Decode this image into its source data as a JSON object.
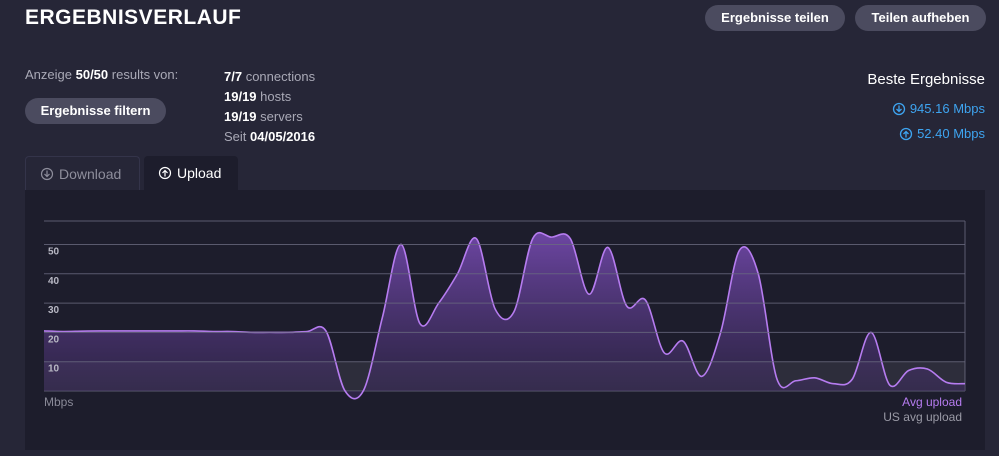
{
  "header": {
    "title": "ERGEBNISVERLAUF",
    "buttons": [
      "Ergebnisse teilen",
      "Teilen aufheben"
    ]
  },
  "summary": {
    "display": [
      "Anzeige",
      "50/50",
      "results von:"
    ],
    "filter_button": "Ergebnisse filtern",
    "stats": [
      [
        "7/7",
        "connections"
      ],
      [
        "19/19",
        "hosts"
      ],
      [
        "19/19",
        "servers"
      ],
      [
        "Seit",
        "04/05/2016"
      ]
    ]
  },
  "best": {
    "title": "Beste Ergebnisse",
    "download": "945.16 Mbps",
    "upload": "52.40 Mbps"
  },
  "tabs": [
    "Download",
    "Upload"
  ],
  "chart_data": {
    "type": "area",
    "y_label": "Mbps",
    "categories": [
      null,
      null,
      null,
      null,
      null,
      null,
      null,
      null,
      null,
      null,
      null,
      null,
      null,
      null,
      null,
      null,
      null,
      null,
      null,
      null,
      null,
      null,
      null,
      null,
      null,
      null,
      null,
      null,
      null,
      null,
      null,
      null,
      null,
      null,
      null,
      null,
      null,
      null,
      null,
      null,
      null,
      null,
      null,
      null,
      null,
      null,
      null,
      null,
      null,
      null
    ],
    "series": [
      {
        "name": "Avg upload",
        "color": "#b67cf0",
        "values": [
          20.5,
          20.3,
          20.4,
          20.5,
          20.5,
          20.5,
          20.5,
          20.5,
          20.5,
          20.3,
          20.3,
          20,
          20,
          20,
          20.3,
          20.5,
          0.2,
          0.2,
          25,
          50,
          23,
          30,
          40,
          52,
          28,
          27,
          52,
          52.5,
          52,
          33,
          49,
          29,
          31,
          13,
          17,
          5,
          20,
          48,
          40,
          4,
          3.5,
          4.5,
          2.5,
          4,
          20,
          2,
          7,
          7.5,
          3,
          2.5
        ]
      },
      {
        "name": "US avg upload",
        "color": "#9a9aa6",
        "values": [
          10,
          10,
          10,
          10,
          10,
          10,
          10,
          10,
          10,
          10,
          10,
          10,
          10,
          10,
          10,
          10,
          10,
          10,
          10,
          10,
          10,
          10,
          10,
          10,
          10,
          10,
          10,
          10,
          10,
          10,
          10,
          10,
          10,
          10,
          10,
          10,
          10,
          10,
          10,
          10,
          10,
          10,
          10,
          10,
          10,
          10,
          10,
          10,
          10,
          10
        ]
      }
    ],
    "ylim": [
      0,
      58
    ],
    "yticks": [
      10,
      20,
      30,
      40,
      50
    ],
    "grid": true
  }
}
